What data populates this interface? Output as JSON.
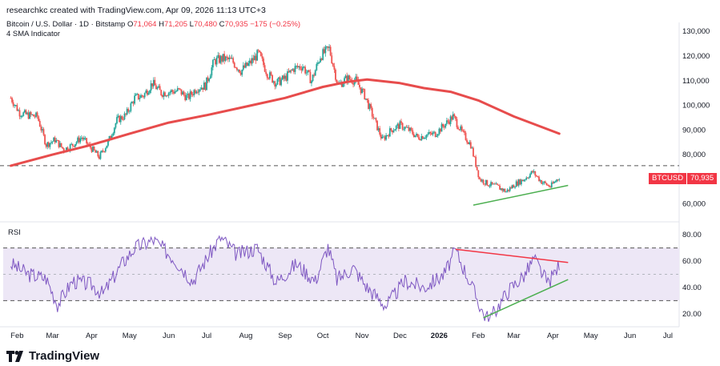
{
  "header": {
    "attribution": "researchkc created with TradingView.com, Apr 09, 2026 11:13 UTC+3"
  },
  "symbol": {
    "name": "Bitcoin / U.S. Dollar · 1D · Bitstamp",
    "o_label": "O",
    "o_value": "71,064",
    "h_label": "H",
    "h_value": "71,205",
    "l_label": "L",
    "l_value": "70,480",
    "c_label": "C",
    "c_value": "70,935",
    "change": "−175 (−0.25%)"
  },
  "indicator": "4 SMA Indicator",
  "rsi_label": "RSI",
  "price_tag": {
    "symbol": "BTCUSD",
    "value": "70,935"
  },
  "footer": {
    "brand": "TradingView"
  },
  "colors": {
    "up": "#26a69a",
    "down": "#ef5350",
    "sma": "#e74c4c",
    "rsi_line": "#7e57c2",
    "rsi_band": "#ede7f6",
    "trend_green": "#4caf50",
    "trend_red": "#f23645"
  },
  "chart_data": [
    {
      "type": "candlestick",
      "series_name": "BTCUSD",
      "price_axis_ticks": [
        "130,000",
        "120,000",
        "110,000",
        "100,000",
        "90,000",
        "80,000",
        "60,000"
      ],
      "ylim": [
        55000,
        133000
      ],
      "x_axis_ticks": [
        "Feb",
        "Mar",
        "Apr",
        "May",
        "Jun",
        "Jul",
        "Aug",
        "Sep",
        "Oct",
        "Nov",
        "Dec",
        "2026",
        "Feb",
        "Mar",
        "Apr",
        "May",
        "Jun",
        "Jul"
      ],
      "close_path": [
        [
          "2025-01-27",
          103000
        ],
        [
          "2025-02-03",
          97000
        ],
        [
          "2025-02-10",
          96000
        ],
        [
          "2025-02-17",
          95500
        ],
        [
          "2025-02-24",
          84000
        ],
        [
          "2025-03-03",
          86000
        ],
        [
          "2025-03-10",
          82000
        ],
        [
          "2025-03-17",
          84000
        ],
        [
          "2025-03-24",
          87000
        ],
        [
          "2025-03-31",
          83000
        ],
        [
          "2025-04-07",
          79000
        ],
        [
          "2025-04-14",
          85000
        ],
        [
          "2025-04-21",
          94000
        ],
        [
          "2025-04-28",
          96000
        ],
        [
          "2025-05-05",
          103000
        ],
        [
          "2025-05-12",
          104000
        ],
        [
          "2025-05-19",
          109000
        ],
        [
          "2025-05-26",
          105000
        ],
        [
          "2025-06-02",
          105500
        ],
        [
          "2025-06-09",
          106000
        ],
        [
          "2025-06-16",
          103000
        ],
        [
          "2025-06-23",
          107000
        ],
        [
          "2025-06-30",
          108000
        ],
        [
          "2025-07-07",
          118000
        ],
        [
          "2025-07-14",
          119000
        ],
        [
          "2025-07-21",
          118000
        ],
        [
          "2025-07-28",
          114000
        ],
        [
          "2025-08-04",
          117000
        ],
        [
          "2025-08-11",
          121000
        ],
        [
          "2025-08-18",
          113000
        ],
        [
          "2025-08-25",
          109000
        ],
        [
          "2025-09-01",
          111000
        ],
        [
          "2025-09-08",
          115000
        ],
        [
          "2025-09-15",
          116000
        ],
        [
          "2025-09-22",
          110000
        ],
        [
          "2025-09-29",
          120000
        ],
        [
          "2025-10-06",
          123000
        ],
        [
          "2025-10-13",
          108000
        ],
        [
          "2025-10-20",
          111000
        ],
        [
          "2025-10-27",
          110000
        ],
        [
          "2025-11-03",
          104000
        ],
        [
          "2025-11-10",
          95000
        ],
        [
          "2025-11-17",
          86000
        ],
        [
          "2025-11-24",
          90000
        ],
        [
          "2025-12-01",
          92000
        ],
        [
          "2025-12-08",
          90000
        ],
        [
          "2025-12-15",
          87000
        ],
        [
          "2025-12-22",
          88000
        ],
        [
          "2025-12-29",
          88500
        ],
        [
          "2026-01-05",
          92000
        ],
        [
          "2026-01-12",
          95500
        ],
        [
          "2026-01-19",
          89000
        ],
        [
          "2026-01-26",
          84000
        ],
        [
          "2026-02-02",
          70000
        ],
        [
          "2026-02-09",
          68000
        ],
        [
          "2026-02-16",
          67000
        ],
        [
          "2026-02-23",
          65000
        ],
        [
          "2026-03-02",
          68000
        ],
        [
          "2026-03-09",
          70000
        ],
        [
          "2026-03-16",
          73000
        ],
        [
          "2026-03-23",
          69000
        ],
        [
          "2026-03-30",
          67000
        ],
        [
          "2026-04-06",
          70935
        ]
      ],
      "support_level": 75500,
      "sma_path": [
        [
          "2025-01-27",
          75500
        ],
        [
          "2025-03-01",
          80000
        ],
        [
          "2025-04-01",
          84000
        ],
        [
          "2025-05-01",
          88500
        ],
        [
          "2025-06-01",
          93000
        ],
        [
          "2025-07-01",
          96000
        ],
        [
          "2025-08-01",
          99500
        ],
        [
          "2025-09-01",
          103000
        ],
        [
          "2025-10-01",
          107500
        ],
        [
          "2025-10-20",
          109500
        ],
        [
          "2025-11-05",
          110500
        ],
        [
          "2025-12-01",
          109000
        ],
        [
          "2025-12-20",
          107000
        ],
        [
          "2026-01-10",
          105500
        ],
        [
          "2026-02-01",
          102000
        ],
        [
          "2026-03-01",
          95500
        ],
        [
          "2026-04-06",
          88500
        ]
      ],
      "trendline": [
        [
          "2026-01-28",
          59500
        ],
        [
          "2026-04-13",
          67500
        ]
      ]
    },
    {
      "type": "line",
      "title": "RSI",
      "series_name": "RSI",
      "y_ticks": [
        "80.00",
        "60.00",
        "40.00",
        "20.00"
      ],
      "ylim": [
        12,
        88
      ],
      "band": [
        30,
        70
      ],
      "mid": 50,
      "rsi_path": [
        [
          "2025-01-27",
          58
        ],
        [
          "2025-02-10",
          50
        ],
        [
          "2025-02-24",
          47
        ],
        [
          "2025-03-05",
          27
        ],
        [
          "2025-03-17",
          45
        ],
        [
          "2025-04-01",
          42
        ],
        [
          "2025-04-10",
          35
        ],
        [
          "2025-04-25",
          58
        ],
        [
          "2025-05-05",
          70
        ],
        [
          "2025-05-20",
          76
        ],
        [
          "2025-06-05",
          62
        ],
        [
          "2025-06-20",
          45
        ],
        [
          "2025-07-01",
          62
        ],
        [
          "2025-07-12",
          78
        ],
        [
          "2025-07-25",
          65
        ],
        [
          "2025-08-10",
          70
        ],
        [
          "2025-08-25",
          44
        ],
        [
          "2025-09-10",
          58
        ],
        [
          "2025-09-25",
          45
        ],
        [
          "2025-10-05",
          71
        ],
        [
          "2025-10-12",
          46
        ],
        [
          "2025-10-25",
          55
        ],
        [
          "2025-11-05",
          40
        ],
        [
          "2025-11-20",
          26
        ],
        [
          "2025-12-05",
          45
        ],
        [
          "2025-12-20",
          40
        ],
        [
          "2026-01-05",
          50
        ],
        [
          "2026-01-14",
          68
        ],
        [
          "2026-01-25",
          45
        ],
        [
          "2026-02-05",
          20
        ],
        [
          "2026-02-10",
          16
        ],
        [
          "2026-02-25",
          38
        ],
        [
          "2026-03-10",
          50
        ],
        [
          "2026-03-17",
          62
        ],
        [
          "2026-03-28",
          43
        ],
        [
          "2026-04-06",
          57
        ]
      ],
      "resistance_line": [
        [
          "2026-01-14",
          69
        ],
        [
          "2026-04-13",
          59
        ]
      ],
      "support_line": [
        [
          "2026-02-05",
          17
        ],
        [
          "2026-04-13",
          46
        ]
      ]
    }
  ]
}
